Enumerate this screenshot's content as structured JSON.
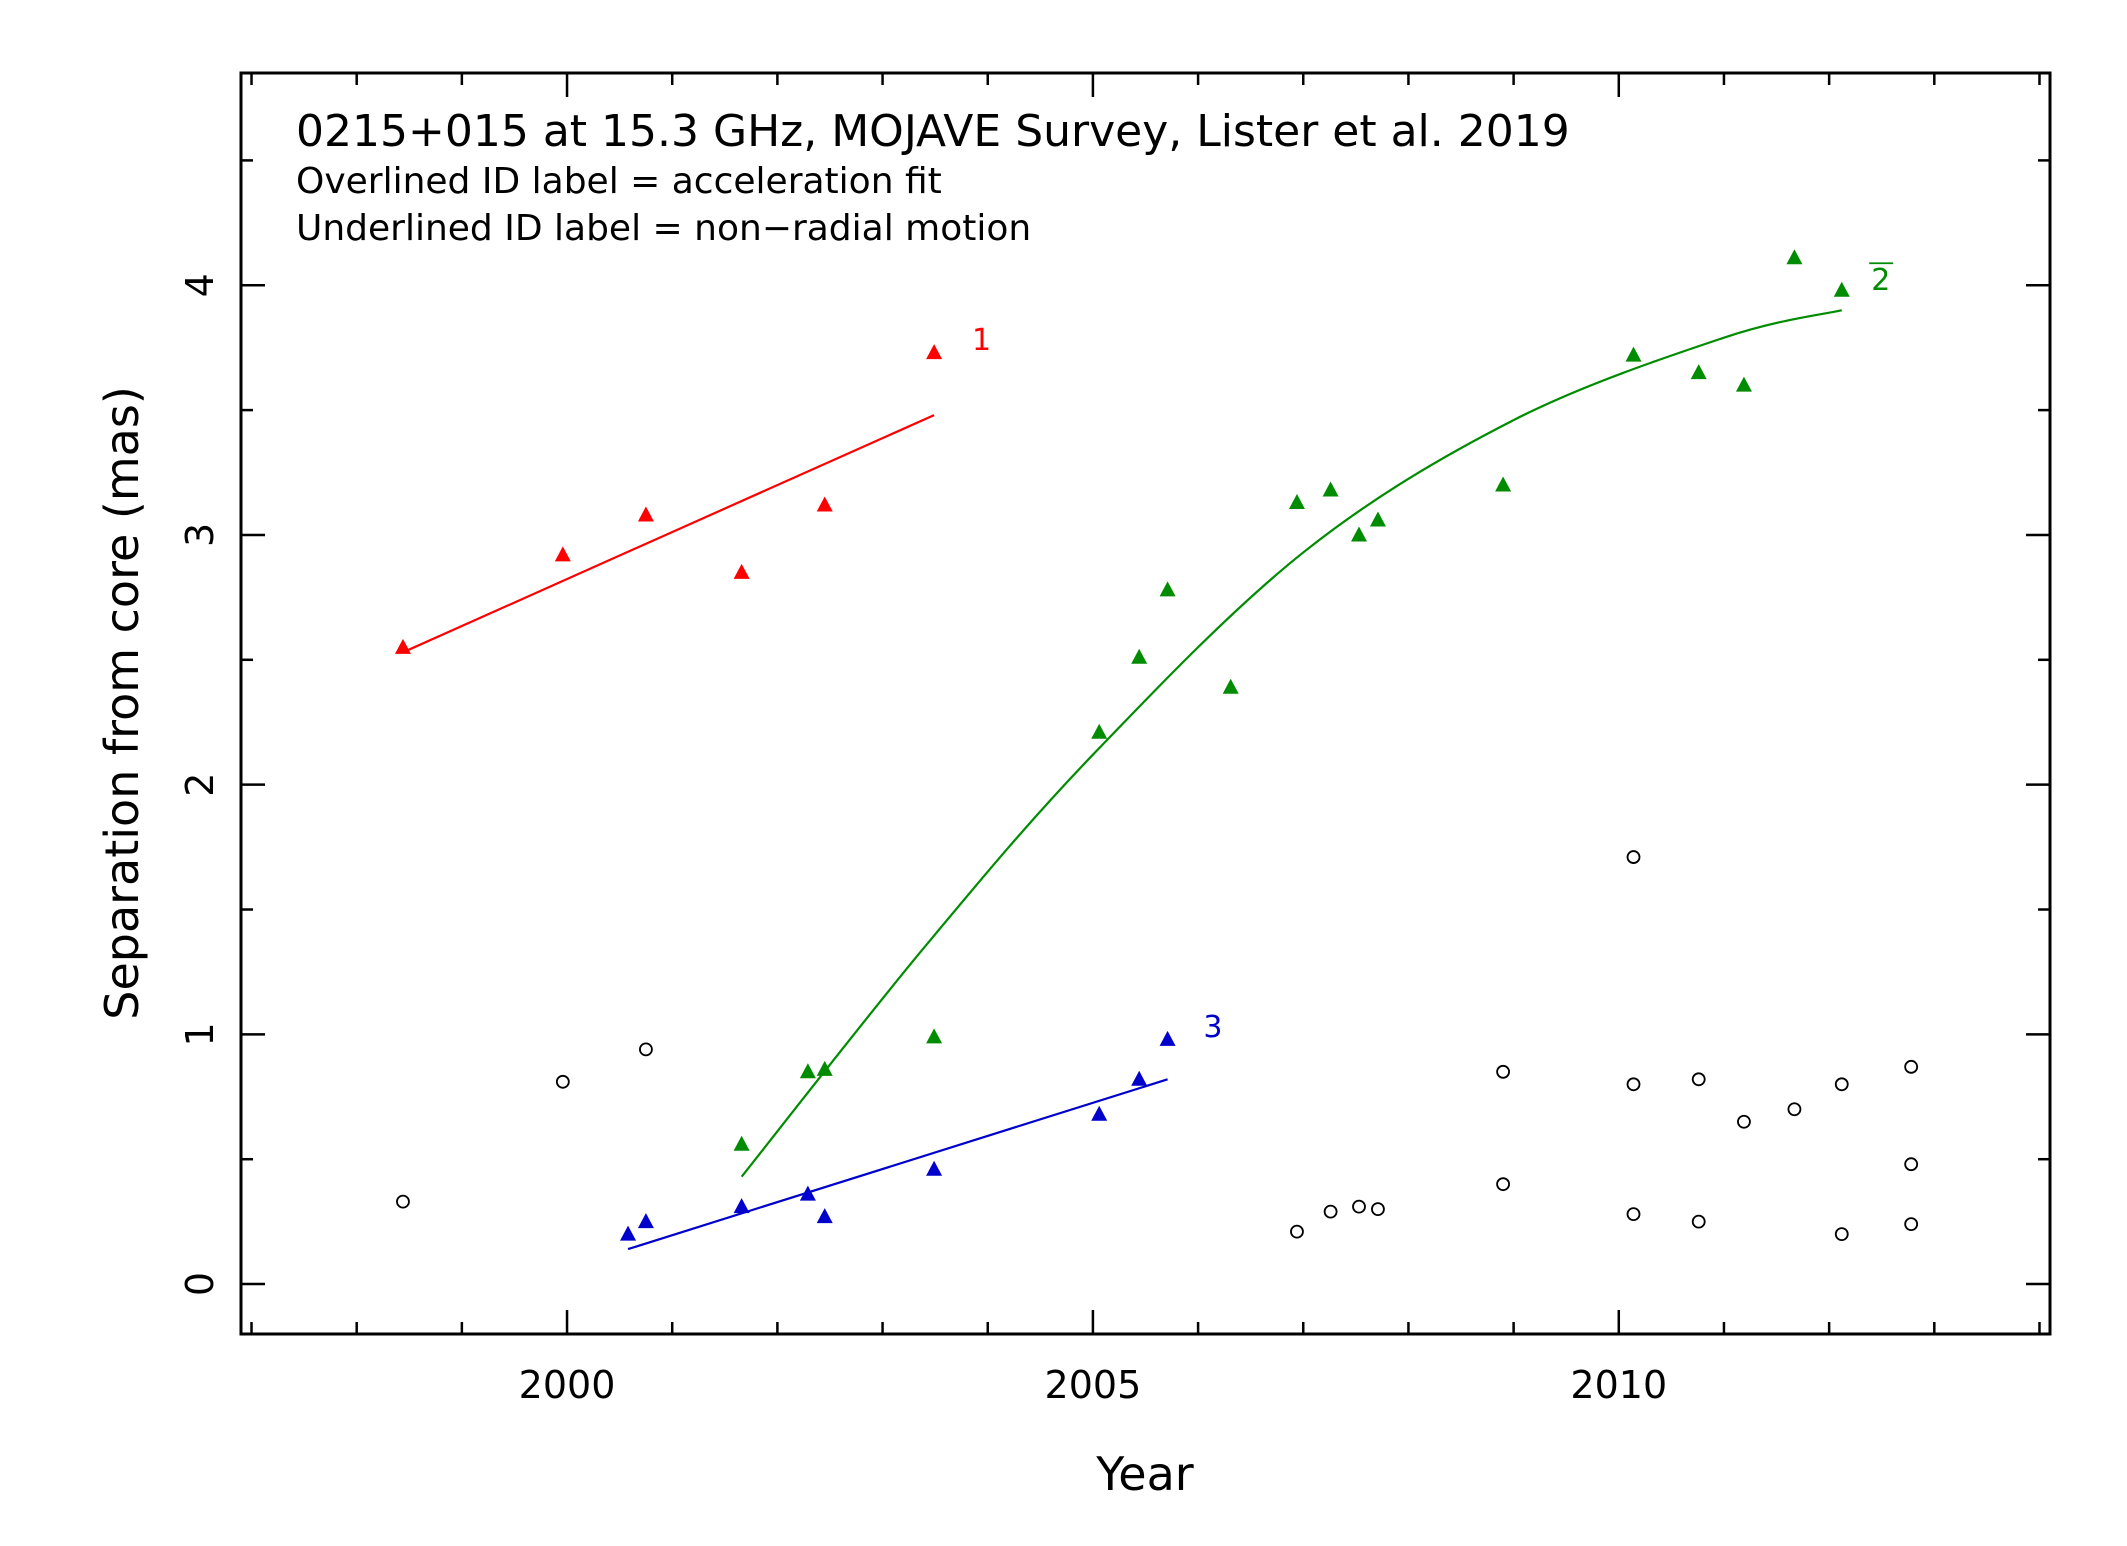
{
  "chart_data": {
    "type": "scatter",
    "title": "0215+015 at 15.3 GHz, MOJAVE Survey, Lister et al. 2019",
    "subtitle_lines": [
      "Overlined ID label = acceleration fit",
      "Underlined ID label = non−radial motion"
    ],
    "xlabel": "Year",
    "ylabel": "Separation from core (mas)",
    "xlim": [
      1996.9,
      2014.1
    ],
    "ylim": [
      -0.2,
      4.85
    ],
    "x_ticks": [
      2000,
      2005,
      2010
    ],
    "y_ticks": [
      0,
      1,
      2,
      3,
      4
    ],
    "grid": false,
    "series": [
      {
        "name": "1",
        "color": "#ff0000",
        "marker": "triangle",
        "overlined": false,
        "label_at": [
          2003.85,
          3.74
        ],
        "x": [
          1998.44,
          1999.96,
          2000.75,
          2001.66,
          2002.45,
          2003.49
        ],
        "y": [
          2.55,
          2.92,
          3.08,
          2.85,
          3.12,
          3.73
        ],
        "fit": {
          "kind": "linear",
          "x": [
            1998.44,
            2003.49
          ],
          "y": [
            2.53,
            3.48
          ]
        }
      },
      {
        "name": "2",
        "color": "#008c00",
        "marker": "triangle",
        "overlined": true,
        "label_at": [
          2012.4,
          3.98
        ],
        "x": [
          2001.66,
          2002.29,
          2002.45,
          2003.49,
          2005.06,
          2005.44,
          2005.71,
          2006.31,
          2006.94,
          2007.26,
          2007.53,
          2007.71,
          2008.9,
          2010.14,
          2010.76,
          2011.19,
          2011.67,
          2012.12
        ],
        "y": [
          0.56,
          0.85,
          0.86,
          0.99,
          2.21,
          2.51,
          2.78,
          2.39,
          3.13,
          3.18,
          3.0,
          3.06,
          3.2,
          3.72,
          3.65,
          3.6,
          4.11,
          3.98
        ],
        "fit": {
          "kind": "quadratic",
          "x": [
            2001.66,
            2003.4,
            2005.0,
            2007.0,
            2009.0,
            2011.0,
            2012.12
          ],
          "y": [
            0.43,
            1.35,
            2.12,
            2.93,
            3.46,
            3.79,
            3.9
          ]
        }
      },
      {
        "name": "3",
        "color": "#0000cc",
        "marker": "triangle",
        "overlined": false,
        "label_at": [
          2006.05,
          0.99
        ],
        "x": [
          2000.58,
          2000.75,
          2001.66,
          2002.29,
          2002.45,
          2003.49,
          2005.06,
          2005.44,
          2005.71
        ],
        "y": [
          0.2,
          0.25,
          0.31,
          0.36,
          0.27,
          0.46,
          0.68,
          0.82,
          0.98
        ],
        "fit": {
          "kind": "linear",
          "x": [
            2000.58,
            2005.71
          ],
          "y": [
            0.14,
            0.82
          ]
        }
      },
      {
        "name": "",
        "color": "#000000",
        "marker": "open-circle",
        "x": [
          1998.44,
          1999.96,
          2000.75,
          2006.94,
          2007.26,
          2007.53,
          2007.71,
          2008.9,
          2008.9,
          2010.14,
          2010.14,
          2010.14,
          2010.76,
          2010.76,
          2011.19,
          2011.67,
          2012.12,
          2012.12,
          2012.78,
          2012.78,
          2012.78
        ],
        "y": [
          0.33,
          0.81,
          0.94,
          0.21,
          0.29,
          0.31,
          0.3,
          0.85,
          0.4,
          1.71,
          0.8,
          0.28,
          0.82,
          0.25,
          0.65,
          0.7,
          0.8,
          0.2,
          0.87,
          0.48,
          0.24
        ]
      }
    ]
  }
}
